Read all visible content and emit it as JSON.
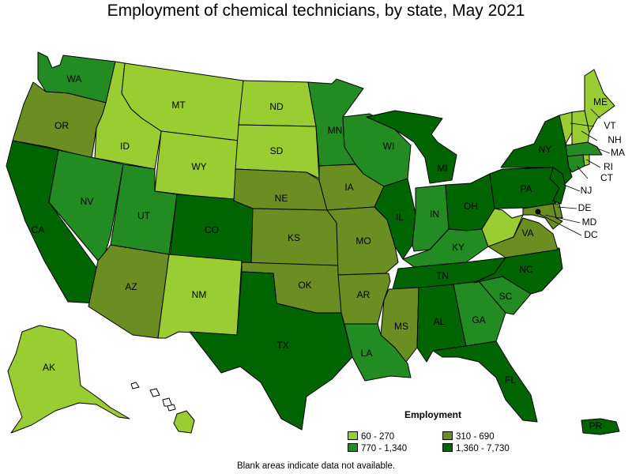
{
  "title": "Employment of chemical technicians, by state, May 2021",
  "legend": {
    "title": "Employment",
    "classes": [
      {
        "range": "60 - 270",
        "color": "#9acd32"
      },
      {
        "range": "310 - 690",
        "color": "#6b8e23"
      },
      {
        "range": "770 - 1,340",
        "color": "#228b22"
      },
      {
        "range": "1,360 - 7,730",
        "color": "#006400"
      }
    ]
  },
  "footnote": "Blank areas indicate data not available.",
  "states": {
    "WA": 2,
    "OR": 1,
    "CA": 3,
    "NV": 2,
    "ID": 0,
    "MT": 0,
    "WY": 0,
    "UT": 2,
    "AZ": 1,
    "CO": 3,
    "NM": 0,
    "ND": 0,
    "SD": 0,
    "NE": 1,
    "KS": 1,
    "OK": 1,
    "TX": 3,
    "MN": 2,
    "IA": 1,
    "MO": 1,
    "AR": 1,
    "LA": 2,
    "WI": 2,
    "IL": 3,
    "MI": 3,
    "IN": 2,
    "OH": 3,
    "KY": 2,
    "TN": 3,
    "MS": 1,
    "AL": 3,
    "GA": 2,
    "FL": 3,
    "SC": 2,
    "NC": 3,
    "VA": 1,
    "WV": 0,
    "PA": 3,
    "NY": 3,
    "ME": 0,
    "VT": 0,
    "NH": 0,
    "MA": 2,
    "CT": 2,
    "RI": 0,
    "NJ": 3,
    "DE": 1,
    "MD": 1,
    "DC": 0,
    "AK": 0,
    "HI": 0,
    "PR": 3
  },
  "labels": [
    "WA",
    "OR",
    "CA",
    "NV",
    "ID",
    "MT",
    "WY",
    "UT",
    "AZ",
    "CO",
    "NM",
    "ND",
    "SD",
    "NE",
    "KS",
    "OK",
    "TX",
    "MN",
    "IA",
    "MO",
    "AR",
    "LA",
    "WI",
    "IL",
    "MI",
    "IN",
    "OH",
    "KY",
    "TN",
    "MS",
    "AL",
    "GA",
    "FL",
    "SC",
    "NC",
    "VA",
    "PA",
    "NY",
    "ME",
    "VT",
    "NH",
    "MA",
    "CT",
    "RI",
    "NJ",
    "DE",
    "MD",
    "DC",
    "AK",
    "PR"
  ]
}
